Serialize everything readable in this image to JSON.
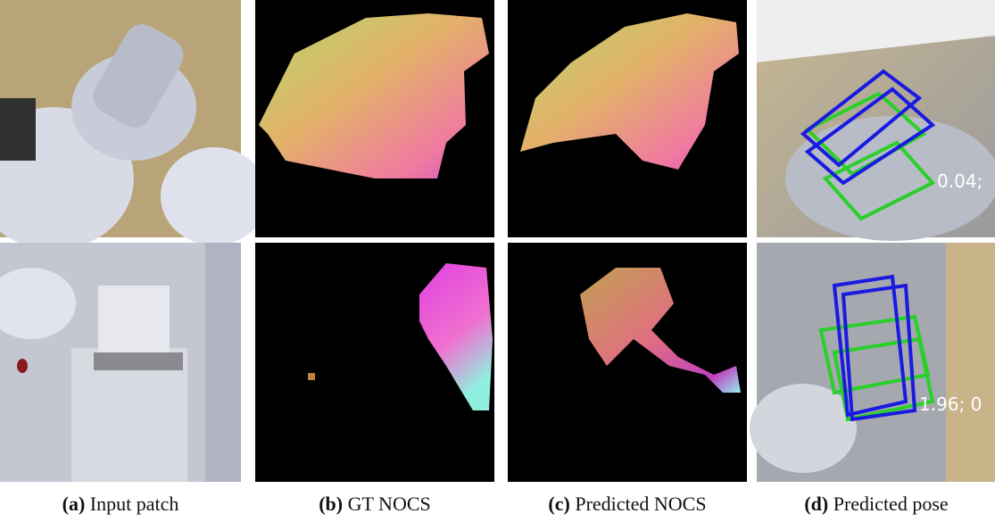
{
  "panels": [
    {
      "label": "(a)",
      "caption": "Input patch"
    },
    {
      "label": "(b)",
      "caption": "GT NOCS"
    },
    {
      "label": "(c)",
      "caption": "Predicted NOCS"
    },
    {
      "label": "(d)",
      "caption": "Predicted pose",
      "overlays": [
        "0.04;",
        "1.96; 0"
      ]
    }
  ]
}
